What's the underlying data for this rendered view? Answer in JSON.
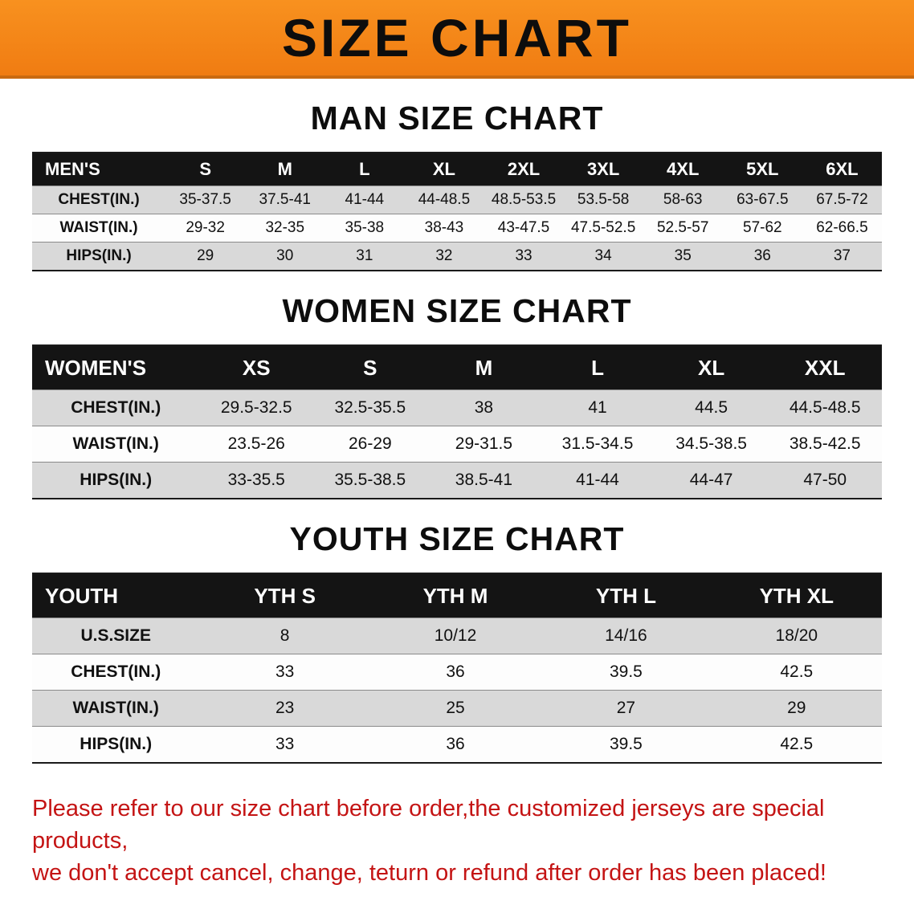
{
  "banner": {
    "title": "SIZE CHART"
  },
  "colors": {
    "banner_bg": "#F58220",
    "table_header_bar": "#141414",
    "row_shade": "#D9D9D9",
    "disclaimer_red": "#C41414"
  },
  "sections": [
    {
      "heading": "MAN SIZE CHART",
      "table": {
        "label": "MEN'S",
        "columns": [
          "S",
          "M",
          "L",
          "XL",
          "2XL",
          "3XL",
          "4XL",
          "5XL",
          "6XL"
        ],
        "rows": [
          {
            "label": "CHEST(IN.)",
            "values": [
              "35-37.5",
              "37.5-41",
              "41-44",
              "44-48.5",
              "48.5-53.5",
              "53.5-58",
              "58-63",
              "63-67.5",
              "67.5-72"
            ]
          },
          {
            "label": "WAIST(IN.)",
            "values": [
              "29-32",
              "32-35",
              "35-38",
              "38-43",
              "43-47.5",
              "47.5-52.5",
              "52.5-57",
              "57-62",
              "62-66.5"
            ]
          },
          {
            "label": "HIPS(IN.)",
            "values": [
              "29",
              "30",
              "31",
              "32",
              "33",
              "34",
              "35",
              "36",
              "37"
            ]
          }
        ]
      }
    },
    {
      "heading": "WOMEN SIZE CHART",
      "table": {
        "label": "WOMEN'S",
        "columns": [
          "XS",
          "S",
          "M",
          "L",
          "XL",
          "XXL"
        ],
        "rows": [
          {
            "label": "CHEST(IN.)",
            "values": [
              "29.5-32.5",
              "32.5-35.5",
              "38",
              "41",
              "44.5",
              "44.5-48.5"
            ]
          },
          {
            "label": "WAIST(IN.)",
            "values": [
              "23.5-26",
              "26-29",
              "29-31.5",
              "31.5-34.5",
              "34.5-38.5",
              "38.5-42.5"
            ]
          },
          {
            "label": "HIPS(IN.)",
            "values": [
              "33-35.5",
              "35.5-38.5",
              "38.5-41",
              "41-44",
              "44-47",
              "47-50"
            ]
          }
        ]
      }
    },
    {
      "heading": "YOUTH SIZE CHART",
      "table": {
        "label": "YOUTH",
        "columns": [
          "YTH S",
          "YTH M",
          "YTH L",
          "YTH XL"
        ],
        "rows": [
          {
            "label": "U.S.SIZE",
            "values": [
              "8",
              "10/12",
              "14/16",
              "18/20"
            ]
          },
          {
            "label": "CHEST(IN.)",
            "values": [
              "33",
              "36",
              "39.5",
              "42.5"
            ]
          },
          {
            "label": "WAIST(IN.)",
            "values": [
              "23",
              "25",
              "27",
              "29"
            ]
          },
          {
            "label": "HIPS(IN.)",
            "values": [
              "33",
              "36",
              "39.5",
              "42.5"
            ]
          }
        ]
      }
    }
  ],
  "footer": {
    "line1": "Please refer to our size chart before order,the customized jerseys are special products,",
    "line2": "we don't accept cancel, change, teturn or refund after order has been placed!"
  }
}
